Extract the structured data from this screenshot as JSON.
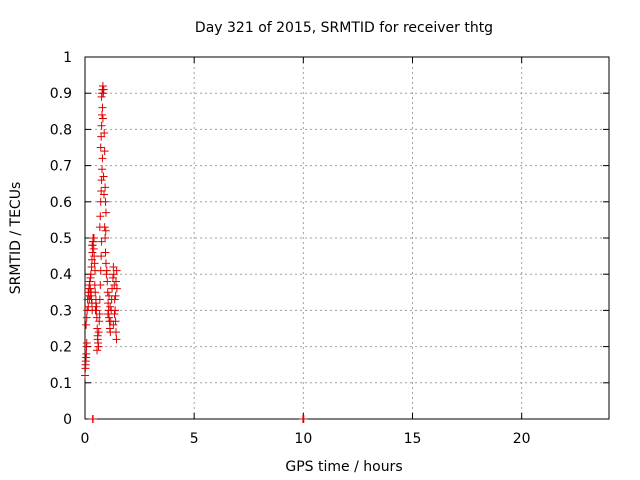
{
  "chart_data": {
    "type": "scatter",
    "title": "Day 321 of 2015, SRMTID for receiver thtg",
    "xlabel": "GPS time / hours",
    "ylabel": "SRMTID / TECUs",
    "xlim": [
      0,
      24
    ],
    "ylim": [
      0,
      1
    ],
    "xticks": [
      0,
      5,
      10,
      15,
      20
    ],
    "xtick_labels": [
      "0",
      "5",
      "10",
      "15",
      "20"
    ],
    "yticks": [
      0,
      0.1,
      0.2,
      0.3,
      0.4,
      0.5,
      0.6,
      0.7,
      0.8,
      0.9,
      1
    ],
    "ytick_labels": [
      "0",
      "0.1",
      "0.2",
      "0.3",
      "0.4",
      "0.5",
      "0.6",
      "0.7",
      "0.8",
      "0.9",
      "1"
    ],
    "grid": true,
    "marker": "+",
    "color": "#e00000",
    "series": [
      {
        "name": "SRMTID",
        "points": [
          [
            0.0,
            0.12
          ],
          [
            0.02,
            0.14
          ],
          [
            0.03,
            0.15
          ],
          [
            0.04,
            0.16
          ],
          [
            0.05,
            0.17
          ],
          [
            0.06,
            0.18
          ],
          [
            0.07,
            0.2
          ],
          [
            0.08,
            0.21
          ],
          [
            0.05,
            0.26
          ],
          [
            0.08,
            0.28
          ],
          [
            0.1,
            0.3
          ],
          [
            0.12,
            0.33
          ],
          [
            0.15,
            0.35
          ],
          [
            0.17,
            0.34
          ],
          [
            0.18,
            0.36
          ],
          [
            0.2,
            0.37
          ],
          [
            0.22,
            0.38
          ],
          [
            0.24,
            0.36
          ],
          [
            0.25,
            0.39
          ],
          [
            0.27,
            0.4
          ],
          [
            0.28,
            0.35
          ],
          [
            0.3,
            0.33
          ],
          [
            0.32,
            0.32
          ],
          [
            0.33,
            0.3
          ],
          [
            0.15,
            0.31
          ],
          [
            0.2,
            0.33
          ],
          [
            0.25,
            0.34
          ],
          [
            0.3,
            0.42
          ],
          [
            0.32,
            0.44
          ],
          [
            0.34,
            0.46
          ],
          [
            0.35,
            0.48
          ],
          [
            0.37,
            0.5
          ],
          [
            0.38,
            0.49
          ],
          [
            0.4,
            0.47
          ],
          [
            0.42,
            0.45
          ],
          [
            0.44,
            0.43
          ],
          [
            0.46,
            0.41
          ],
          [
            0.33,
            0.48
          ],
          [
            0.36,
            0.49
          ],
          [
            0.41,
            0.5
          ],
          [
            0.45,
            0.37
          ],
          [
            0.47,
            0.35
          ],
          [
            0.5,
            0.33
          ],
          [
            0.52,
            0.3
          ],
          [
            0.54,
            0.28
          ],
          [
            0.56,
            0.25
          ],
          [
            0.58,
            0.23
          ],
          [
            0.6,
            0.21
          ],
          [
            0.62,
            0.2
          ],
          [
            0.55,
            0.19
          ],
          [
            0.58,
            0.22
          ],
          [
            0.63,
            0.24
          ],
          [
            0.5,
            0.32
          ],
          [
            0.53,
            0.31
          ],
          [
            0.48,
            0.3
          ],
          [
            0.65,
            0.27
          ],
          [
            0.67,
            0.29
          ],
          [
            0.68,
            0.33
          ],
          [
            0.7,
            0.37
          ],
          [
            0.72,
            0.41
          ],
          [
            0.74,
            0.45
          ],
          [
            0.76,
            0.49
          ],
          [
            0.68,
            0.53
          ],
          [
            0.7,
            0.56
          ],
          [
            0.72,
            0.6
          ],
          [
            0.74,
            0.63
          ],
          [
            0.76,
            0.66
          ],
          [
            0.78,
            0.69
          ],
          [
            0.8,
            0.72
          ],
          [
            0.72,
            0.75
          ],
          [
            0.74,
            0.78
          ],
          [
            0.76,
            0.81
          ],
          [
            0.78,
            0.84
          ],
          [
            0.8,
            0.86
          ],
          [
            0.82,
            0.83
          ],
          [
            0.76,
            0.89
          ],
          [
            0.78,
            0.9
          ],
          [
            0.8,
            0.91
          ],
          [
            0.82,
            0.92
          ],
          [
            0.84,
            0.9
          ],
          [
            0.86,
            0.91
          ],
          [
            0.88,
            0.79
          ],
          [
            0.9,
            0.74
          ],
          [
            0.92,
            0.64
          ],
          [
            0.94,
            0.6
          ],
          [
            0.96,
            0.57
          ],
          [
            0.85,
            0.67
          ],
          [
            0.87,
            0.62
          ],
          [
            0.9,
            0.53
          ],
          [
            0.92,
            0.5
          ],
          [
            0.94,
            0.46
          ],
          [
            0.96,
            0.43
          ],
          [
            0.98,
            0.4
          ],
          [
            0.95,
            0.52
          ],
          [
            1.0,
            0.41
          ],
          [
            1.02,
            0.38
          ],
          [
            1.04,
            0.35
          ],
          [
            1.06,
            0.32
          ],
          [
            1.08,
            0.3
          ],
          [
            1.1,
            0.28
          ],
          [
            1.12,
            0.27
          ],
          [
            1.14,
            0.25
          ],
          [
            1.16,
            0.24
          ],
          [
            1.18,
            0.27
          ],
          [
            1.2,
            0.3
          ],
          [
            1.22,
            0.33
          ],
          [
            1.24,
            0.36
          ],
          [
            1.05,
            0.29
          ],
          [
            1.1,
            0.34
          ],
          [
            1.15,
            0.31
          ],
          [
            1.28,
            0.39
          ],
          [
            1.3,
            0.42
          ],
          [
            1.32,
            0.4
          ],
          [
            1.34,
            0.37
          ],
          [
            1.36,
            0.33
          ],
          [
            1.38,
            0.3
          ],
          [
            1.4,
            0.27
          ],
          [
            1.42,
            0.24
          ],
          [
            1.44,
            0.22
          ],
          [
            1.3,
            0.26
          ],
          [
            1.35,
            0.29
          ],
          [
            1.4,
            0.34
          ],
          [
            1.42,
            0.38
          ],
          [
            1.45,
            0.41
          ],
          [
            1.46,
            0.36
          ],
          [
            0.35,
            0.0
          ],
          [
            0.37,
            0.0
          ],
          [
            9.98,
            0.0
          ],
          [
            10.0,
            0.0
          ],
          [
            10.02,
            0.0
          ]
        ]
      }
    ]
  }
}
